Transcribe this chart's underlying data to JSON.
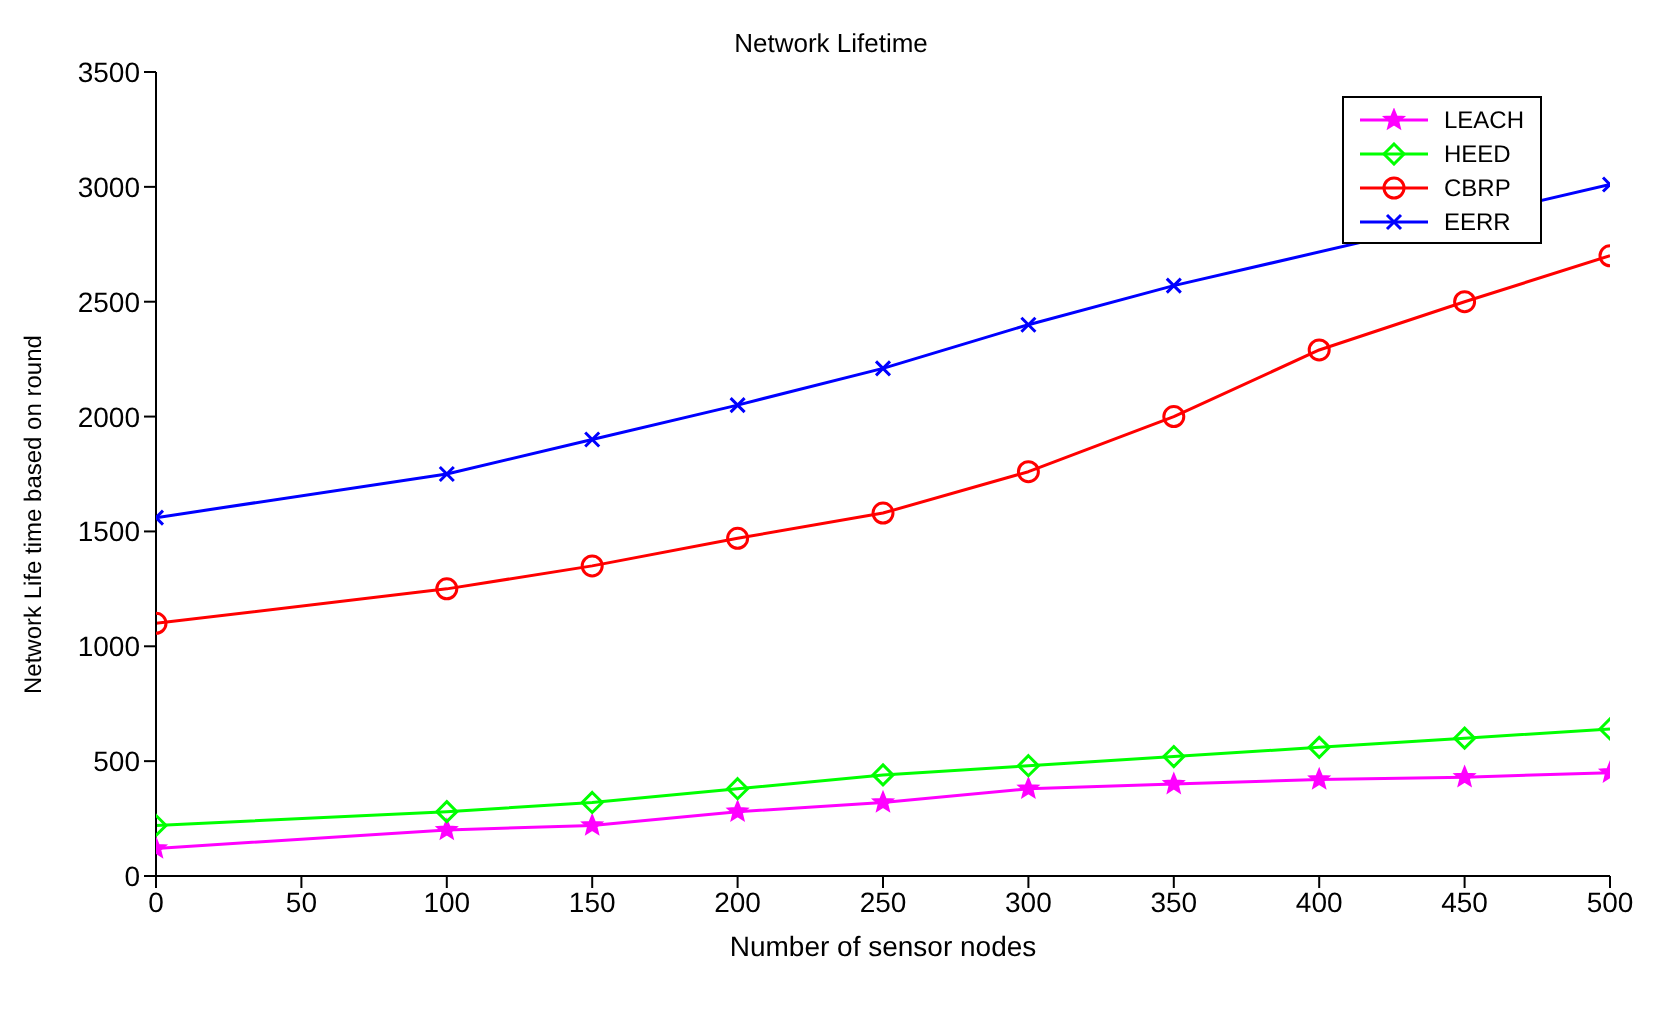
{
  "chart_data": {
    "type": "line",
    "title": "Network Lifetime",
    "xlabel": "Number of sensor nodes",
    "ylabel": "Network Life time based on round",
    "x": [
      0,
      100,
      150,
      200,
      250,
      300,
      350,
      400,
      450,
      500
    ],
    "series": [
      {
        "name": "LEACH",
        "color": "#ff00ff",
        "marker": "star",
        "values": [
          120,
          200,
          220,
          280,
          320,
          380,
          400,
          420,
          430,
          450
        ]
      },
      {
        "name": "HEED",
        "color": "#00ff00",
        "marker": "diamond",
        "values": [
          220,
          280,
          320,
          380,
          440,
          480,
          520,
          560,
          600,
          640
        ]
      },
      {
        "name": "CBRP",
        "color": "#ff0000",
        "marker": "circle",
        "values": [
          1100,
          1250,
          1350,
          1470,
          1580,
          1760,
          2000,
          2290,
          2500,
          2700
        ]
      },
      {
        "name": "EERR",
        "color": "#0000ff",
        "marker": "cross",
        "values": [
          1560,
          1750,
          1900,
          2050,
          2210,
          2400,
          2570,
          null,
          null,
          3010
        ]
      }
    ],
    "xlim": [
      0,
      500
    ],
    "xticks": [
      0,
      50,
      100,
      150,
      200,
      250,
      300,
      350,
      400,
      450,
      500
    ],
    "ylim": [
      0,
      3500
    ],
    "yticks": [
      0,
      500,
      1000,
      1500,
      2000,
      2500,
      3000,
      3500
    ],
    "grid": false,
    "legend": "top right",
    "line_style": "solid"
  }
}
